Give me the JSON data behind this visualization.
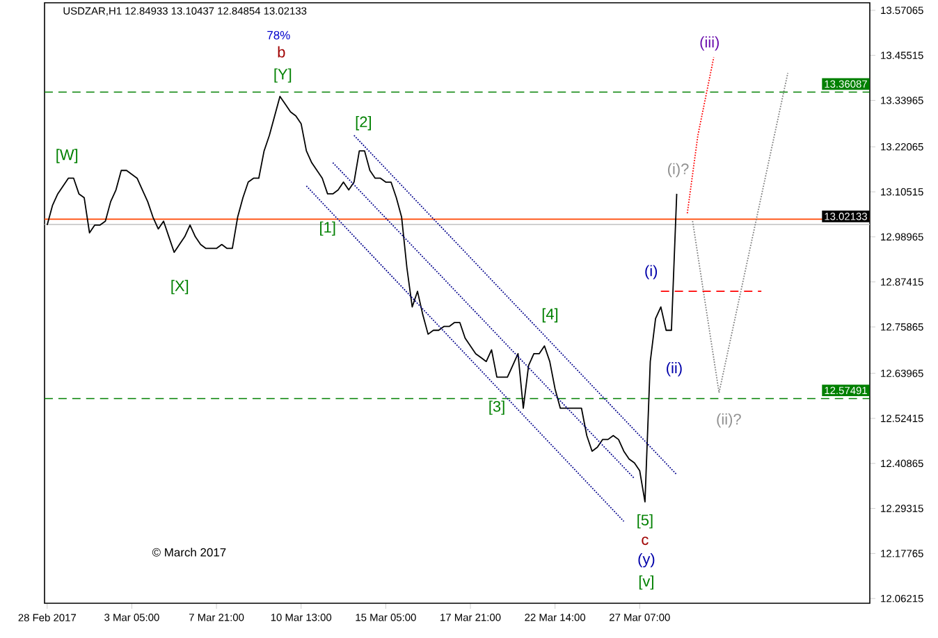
{
  "chart_data": {
    "type": "line",
    "title": "USDZAR,H1  12.84933 13.10437 12.84854 13.02133",
    "categories": [
      "28 Feb 2017",
      null,
      null,
      null,
      null,
      null,
      null,
      null,
      null,
      null,
      null,
      null,
      null,
      null,
      null,
      null,
      "3 Mar 05:00",
      null,
      null,
      null,
      null,
      null,
      null,
      null,
      null,
      null,
      null,
      null,
      null,
      null,
      null,
      null,
      "7 Mar 21:00",
      null,
      null,
      null,
      null,
      null,
      null,
      null,
      null,
      null,
      null,
      null,
      null,
      null,
      null,
      null,
      "10 Mar 13:00",
      null,
      null,
      null,
      null,
      null,
      null,
      null,
      null,
      null,
      null,
      null,
      null,
      null,
      null,
      null,
      "15 Mar 05:00",
      null,
      null,
      null,
      null,
      null,
      null,
      null,
      null,
      null,
      null,
      null,
      null,
      null,
      null,
      null,
      "17 Mar 21:00",
      null,
      null,
      null,
      null,
      null,
      null,
      null,
      null,
      null,
      null,
      null,
      null,
      null,
      null,
      null,
      "22 Mar 14:00",
      null,
      null,
      null,
      null,
      null,
      null,
      null,
      null,
      null,
      null,
      null,
      null,
      null,
      null,
      null,
      "27 Mar 07:00",
      null,
      null,
      null,
      null,
      null,
      null,
      null,
      null,
      null,
      null,
      null,
      null,
      null,
      null,
      null,
      null,
      null,
      null,
      null,
      null,
      null,
      null,
      null,
      null,
      null,
      null,
      null,
      null,
      null,
      null,
      null,
      null,
      null,
      null,
      null,
      null,
      null,
      null,
      null,
      null,
      null,
      null,
      null
    ],
    "series": [
      {
        "color": "#000000",
        "line_style": "solid",
        "values": [
          13.02,
          13.07,
          13.1,
          13.12,
          13.14,
          13.14,
          13.1,
          13.09,
          13.0,
          13.02,
          13.02,
          13.03,
          13.08,
          13.11,
          13.16,
          13.16,
          13.15,
          13.14,
          13.11,
          13.08,
          13.04,
          13.01,
          13.03,
          12.99,
          12.95,
          12.97,
          12.99,
          13.02,
          12.99,
          12.97,
          12.96,
          12.96,
          12.96,
          12.97,
          12.96,
          12.96,
          13.04,
          13.09,
          13.13,
          13.14,
          13.14,
          13.21,
          13.25,
          13.3,
          13.35,
          13.33,
          13.31,
          13.3,
          13.28,
          13.21,
          13.18,
          13.16,
          13.14,
          13.1,
          13.1,
          13.11,
          13.13,
          13.11,
          13.13,
          13.21,
          13.21,
          13.16,
          13.14,
          13.14,
          13.13,
          13.13,
          13.09,
          13.04,
          12.91,
          12.81,
          12.85,
          12.79,
          12.74,
          12.75,
          12.75,
          12.76,
          12.76,
          12.77,
          12.77,
          12.73,
          12.71,
          12.69,
          12.68,
          12.67,
          12.7,
          12.63,
          12.63,
          12.63,
          12.66,
          12.69,
          12.55,
          12.66,
          12.69,
          12.69,
          12.71,
          12.67,
          12.6,
          12.55,
          12.55,
          12.55,
          12.55,
          12.55,
          12.48,
          12.44,
          12.45,
          12.47,
          12.47,
          12.48,
          12.47,
          12.44,
          12.42,
          12.41,
          12.39,
          12.31,
          12.67,
          12.78,
          12.81,
          12.75,
          12.75,
          13.1,
          null,
          null,
          null,
          null,
          null,
          null,
          null,
          null,
          null,
          null,
          null,
          null,
          null,
          null,
          null,
          null,
          null,
          null,
          null,
          null,
          null,
          null,
          null,
          null,
          null,
          null,
          null,
          null,
          null,
          null,
          null,
          null,
          null,
          null,
          null,
          null
        ]
      },
      {
        "color": "#00008b",
        "line_style": "dotted",
        "values": [
          null,
          null,
          null,
          null,
          null,
          null,
          null,
          null,
          null,
          null,
          null,
          null,
          null,
          null,
          null,
          null,
          null,
          null,
          null,
          null,
          null,
          null,
          null,
          null,
          null,
          null,
          null,
          null,
          null,
          null,
          null,
          null,
          null,
          null,
          null,
          null,
          null,
          null,
          null,
          null,
          null,
          null,
          null,
          null,
          null,
          null,
          null,
          null,
          null,
          null,
          null,
          null,
          null,
          null,
          null,
          null,
          null,
          null,
          13.25,
          null,
          null,
          null,
          null,
          null,
          null,
          null,
          null,
          null,
          null,
          null,
          null,
          null,
          null,
          null,
          null,
          null,
          null,
          null,
          null,
          null,
          null,
          null,
          null,
          null,
          null,
          null,
          null,
          null,
          null,
          null,
          null,
          null,
          null,
          null,
          null,
          null,
          null,
          null,
          null,
          null,
          null,
          null,
          null,
          null,
          null,
          null,
          null,
          null,
          null,
          null,
          null,
          null,
          null,
          null,
          null,
          null,
          null,
          null,
          null,
          12.38,
          null,
          null,
          null,
          null,
          null,
          null,
          null,
          null,
          null,
          null,
          null,
          null,
          null,
          null,
          null,
          null,
          null,
          null,
          null,
          null,
          null,
          null,
          null,
          null,
          null,
          null,
          null,
          null,
          null,
          null,
          null,
          null,
          null,
          null,
          null,
          null
        ]
      },
      {
        "color": "#00008b",
        "line_style": "dotted",
        "values": [
          null,
          null,
          null,
          null,
          null,
          null,
          null,
          null,
          null,
          null,
          null,
          null,
          null,
          null,
          null,
          null,
          null,
          null,
          null,
          null,
          null,
          null,
          null,
          null,
          null,
          null,
          null,
          null,
          null,
          null,
          null,
          null,
          null,
          null,
          null,
          null,
          null,
          null,
          null,
          null,
          null,
          null,
          null,
          null,
          null,
          null,
          null,
          null,
          null,
          null,
          null,
          null,
          null,
          null,
          13.18,
          null,
          null,
          null,
          null,
          null,
          null,
          null,
          null,
          null,
          null,
          null,
          null,
          null,
          null,
          null,
          null,
          null,
          null,
          null,
          null,
          null,
          null,
          null,
          null,
          null,
          null,
          null,
          null,
          null,
          null,
          null,
          null,
          null,
          null,
          null,
          null,
          null,
          null,
          null,
          null,
          null,
          null,
          null,
          null,
          null,
          null,
          null,
          null,
          null,
          null,
          null,
          null,
          null,
          null,
          null,
          null,
          12.37,
          null,
          null,
          null,
          null,
          null,
          null,
          null,
          null,
          null,
          null,
          null,
          null,
          null,
          null,
          null,
          null,
          null,
          null,
          null,
          null,
          null,
          null,
          null,
          null,
          null,
          null,
          null,
          null,
          null,
          null,
          null,
          null,
          null,
          null,
          null,
          null,
          null,
          null,
          null,
          null,
          null,
          null,
          null,
          null
        ]
      },
      {
        "color": "#00008b",
        "line_style": "dotted",
        "values": [
          null,
          null,
          null,
          null,
          null,
          null,
          null,
          null,
          null,
          null,
          null,
          null,
          null,
          null,
          null,
          null,
          null,
          null,
          null,
          null,
          null,
          null,
          null,
          null,
          null,
          null,
          null,
          null,
          null,
          null,
          null,
          null,
          null,
          null,
          null,
          null,
          null,
          null,
          null,
          null,
          null,
          null,
          null,
          null,
          null,
          null,
          null,
          null,
          null,
          13.12,
          null,
          null,
          null,
          null,
          null,
          null,
          null,
          null,
          null,
          null,
          null,
          null,
          null,
          null,
          null,
          null,
          null,
          null,
          null,
          null,
          null,
          null,
          null,
          null,
          null,
          null,
          null,
          null,
          null,
          null,
          null,
          null,
          null,
          null,
          null,
          null,
          null,
          null,
          null,
          null,
          null,
          null,
          null,
          null,
          null,
          null,
          null,
          null,
          null,
          null,
          null,
          null,
          null,
          null,
          null,
          null,
          null,
          null,
          null,
          12.26,
          null,
          null,
          null,
          null,
          null,
          null,
          null,
          null,
          null,
          null,
          null,
          null,
          null,
          null,
          null,
          null,
          null,
          null,
          null,
          null,
          null,
          null,
          null,
          null,
          null,
          null,
          null,
          null,
          null,
          null,
          null,
          null,
          null,
          null,
          null,
          null,
          null,
          null,
          null,
          null,
          null,
          null,
          null,
          null,
          null,
          null
        ]
      },
      {
        "color": "#ff0000",
        "line_style": "dotted",
        "values": [
          null,
          null,
          null,
          null,
          null,
          null,
          null,
          null,
          null,
          null,
          null,
          null,
          null,
          null,
          null,
          null,
          null,
          null,
          null,
          null,
          null,
          null,
          null,
          null,
          null,
          null,
          null,
          null,
          null,
          null,
          null,
          null,
          null,
          null,
          null,
          null,
          null,
          null,
          null,
          null,
          null,
          null,
          null,
          null,
          null,
          null,
          null,
          null,
          null,
          null,
          null,
          null,
          null,
          null,
          null,
          null,
          null,
          null,
          null,
          null,
          null,
          null,
          null,
          null,
          null,
          null,
          null,
          null,
          null,
          null,
          null,
          null,
          null,
          null,
          null,
          null,
          null,
          null,
          null,
          null,
          null,
          null,
          null,
          null,
          null,
          null,
          null,
          null,
          null,
          null,
          null,
          null,
          null,
          null,
          null,
          null,
          null,
          null,
          null,
          null,
          null,
          null,
          null,
          null,
          null,
          null,
          null,
          null,
          null,
          null,
          null,
          null,
          null,
          null,
          null,
          null,
          null,
          null,
          null,
          null,
          null,
          13.05,
          null,
          13.25,
          null,
          null,
          13.45,
          null,
          null,
          null,
          null,
          null,
          null,
          null,
          null,
          null,
          null,
          null,
          null,
          null,
          null,
          null,
          null,
          null,
          null,
          null,
          null,
          null,
          null,
          null,
          null,
          null,
          null,
          null,
          null,
          null
        ]
      },
      {
        "color": "#808080",
        "line_style": "dotted",
        "values": [
          null,
          null,
          null,
          null,
          null,
          null,
          null,
          null,
          null,
          null,
          null,
          null,
          null,
          null,
          null,
          null,
          null,
          null,
          null,
          null,
          null,
          null,
          null,
          null,
          null,
          null,
          null,
          null,
          null,
          null,
          null,
          null,
          null,
          null,
          null,
          null,
          null,
          null,
          null,
          null,
          null,
          null,
          null,
          null,
          null,
          null,
          null,
          null,
          null,
          null,
          null,
          null,
          null,
          null,
          null,
          null,
          null,
          null,
          null,
          null,
          null,
          null,
          null,
          null,
          null,
          null,
          null,
          null,
          null,
          null,
          null,
          null,
          null,
          null,
          null,
          null,
          null,
          null,
          null,
          null,
          null,
          null,
          null,
          null,
          null,
          null,
          null,
          null,
          null,
          null,
          null,
          null,
          null,
          null,
          null,
          null,
          null,
          null,
          null,
          null,
          null,
          null,
          null,
          null,
          null,
          null,
          null,
          null,
          null,
          null,
          null,
          null,
          null,
          null,
          null,
          null,
          null,
          null,
          null,
          null,
          null,
          null,
          13.03,
          null,
          null,
          null,
          null,
          12.59,
          null,
          null,
          null,
          null,
          null,
          null,
          null,
          null,
          null,
          null,
          null,
          null,
          13.41,
          null,
          null,
          null,
          null,
          null,
          null,
          null,
          null,
          null,
          null,
          null,
          null,
          null,
          null,
          null
        ]
      },
      {
        "color": "#ff0000",
        "line_style": "dashed",
        "values": [
          null,
          null,
          null,
          null,
          null,
          null,
          null,
          null,
          null,
          null,
          null,
          null,
          null,
          null,
          null,
          null,
          null,
          null,
          null,
          null,
          null,
          null,
          null,
          null,
          null,
          null,
          null,
          null,
          null,
          null,
          null,
          null,
          null,
          null,
          null,
          null,
          null,
          null,
          null,
          null,
          null,
          null,
          null,
          null,
          null,
          null,
          null,
          null,
          null,
          null,
          null,
          null,
          null,
          null,
          null,
          null,
          null,
          null,
          null,
          null,
          null,
          null,
          null,
          null,
          null,
          null,
          null,
          null,
          null,
          null,
          null,
          null,
          null,
          null,
          null,
          null,
          null,
          null,
          null,
          null,
          null,
          null,
          null,
          null,
          null,
          null,
          null,
          null,
          null,
          null,
          null,
          null,
          null,
          null,
          null,
          null,
          null,
          null,
          null,
          null,
          null,
          null,
          null,
          null,
          null,
          null,
          null,
          null,
          null,
          null,
          null,
          null,
          null,
          null,
          null,
          null,
          12.85,
          null,
          null,
          null,
          null,
          null,
          null,
          null,
          null,
          null,
          null,
          null,
          null,
          null,
          null,
          null,
          null,
          null,
          null,
          12.85,
          null,
          null,
          null,
          null,
          null,
          null,
          null,
          null,
          null,
          null,
          null,
          null,
          null,
          null,
          null,
          null,
          null,
          null,
          null,
          null
        ]
      }
    ],
    "ylim": [
      12.05,
      13.59
    ],
    "yticks": [
      12.06215,
      12.17765,
      12.29315,
      12.40865,
      12.52415,
      12.63965,
      12.75865,
      12.87415,
      12.98965,
      13.10515,
      13.22065,
      13.33965,
      13.45515,
      13.57065
    ],
    "ref_lines": [
      {
        "axis": "y",
        "value": 13.36087,
        "label": "13.36087",
        "color": "#008000",
        "line_style": "dashed"
      },
      {
        "axis": "y",
        "value": 13.035,
        "color": "#ff4500",
        "line_style": "solid"
      },
      {
        "axis": "y",
        "value": 13.02133,
        "label": "13.02133",
        "color": "#c0c0c0",
        "line_style": "solid"
      },
      {
        "axis": "y",
        "value": 12.57491,
        "label": "12.57491",
        "color": "#008000",
        "line_style": "dashed"
      }
    ],
    "annotations": [
      "78%",
      "b",
      "[Y]",
      "[W]",
      "[X]",
      "[1]",
      "[2]",
      "[3]",
      "[4]",
      "[5]",
      "c",
      "(y)",
      "[v]",
      "(i)",
      "(ii)",
      "(i)?",
      "(ii)?",
      "(iii)",
      "© March 2017"
    ]
  }
}
